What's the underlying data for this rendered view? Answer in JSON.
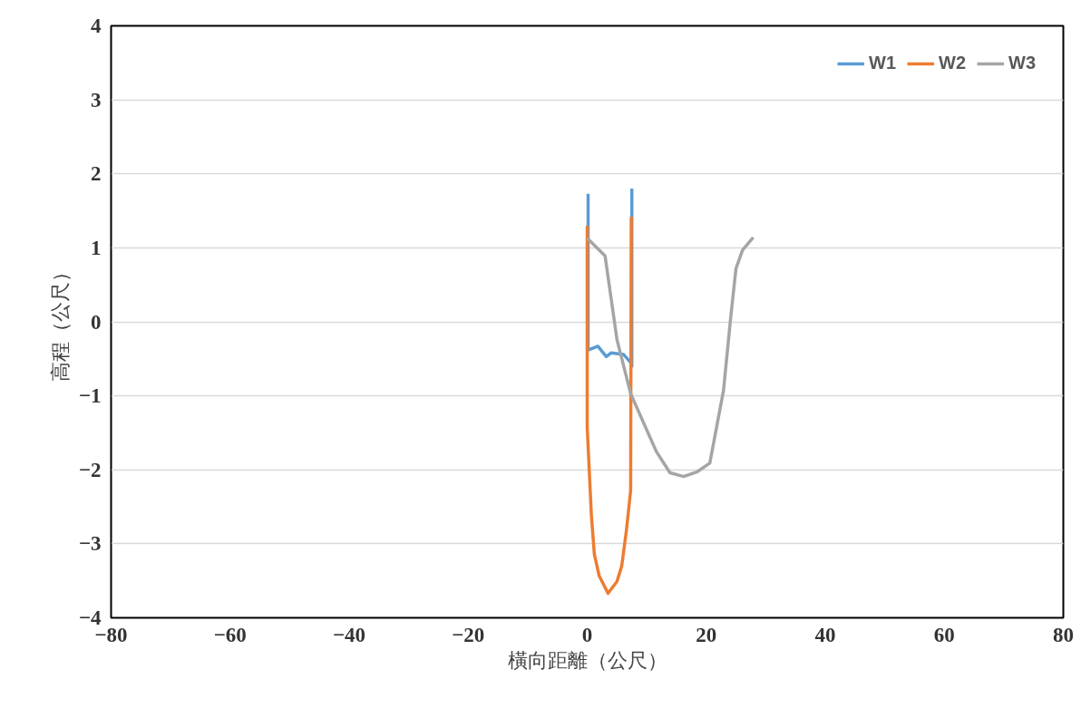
{
  "chart_data": {
    "type": "line",
    "xlabel": "橫向距離（公尺）",
    "ylabel": "高程（公尺）",
    "xlim": [
      -80,
      80
    ],
    "xticks": [
      -80,
      -60,
      -40,
      -20,
      0,
      20,
      40,
      60,
      80
    ],
    "ylim": [
      -4,
      4
    ],
    "yticks": [
      -4,
      -3,
      -2,
      -1,
      0,
      1,
      2,
      3,
      4
    ],
    "grid": "y",
    "legend": "top right",
    "series": [
      {
        "name": "W1",
        "color": "#5b9bd5",
        "x": [
          0.15,
          0.15,
          1.8,
          3.2,
          4.0,
          6.1,
          7.3,
          7.5,
          7.5
        ],
        "values": [
          1.73,
          -0.38,
          -0.33,
          -0.47,
          -0.42,
          -0.44,
          -0.55,
          -0.6,
          1.8
        ]
      },
      {
        "name": "W2",
        "color": "#ed7d31",
        "x": [
          0,
          0,
          0.7,
          1.2,
          2.0,
          3.5,
          5.0,
          5.8,
          6.6,
          7.3,
          7.4
        ],
        "values": [
          1.3,
          -1.42,
          -2.61,
          -3.14,
          -3.43,
          -3.67,
          -3.51,
          -3.3,
          -2.81,
          -2.28,
          1.42
        ]
      },
      {
        "name": "W3",
        "color": "#a5a5a5",
        "x": [
          0,
          3.0,
          5.0,
          7.3,
          11.6,
          13.9,
          16.2,
          18.4,
          20.6,
          22.9,
          24.1,
          25.0,
          26.1,
          27.9
        ],
        "values": [
          1.13,
          0.89,
          -0.24,
          -0.97,
          -1.75,
          -2.04,
          -2.09,
          -2.03,
          -1.91,
          -0.93,
          0.05,
          0.72,
          0.97,
          1.14
        ]
      }
    ]
  }
}
